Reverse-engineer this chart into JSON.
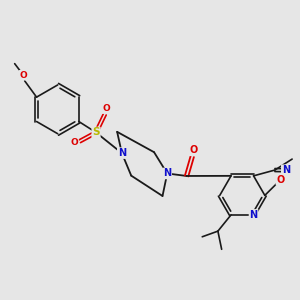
{
  "bg_color": "#e6e6e6",
  "bond_color": "#1a1a1a",
  "atom_colors": {
    "N": "#1010cc",
    "O": "#dd0000",
    "S": "#b8b800",
    "C": "#1a1a1a"
  }
}
